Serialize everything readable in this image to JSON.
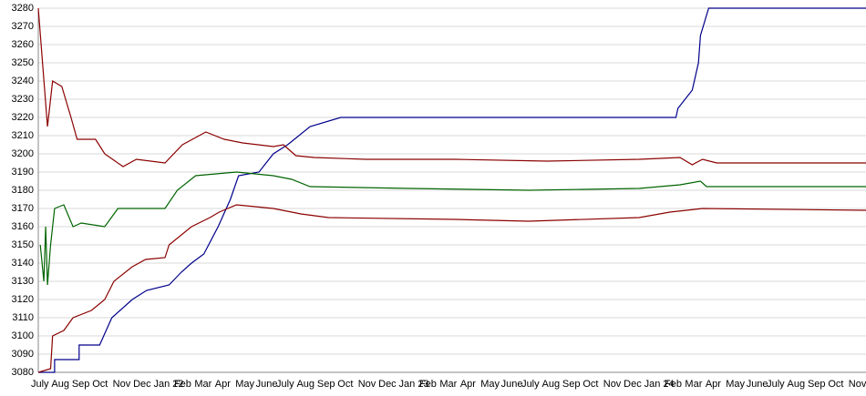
{
  "chart_data": {
    "type": "line",
    "categories": [
      "July",
      "Aug",
      "Sep",
      "Oct",
      "Nov",
      "Dec",
      "Jan 22",
      "Feb",
      "Mar",
      "Apr",
      "May",
      "June",
      "July",
      "Aug",
      "Sep",
      "Oct",
      "Nov",
      "Dec",
      "Jan 23",
      "Feb",
      "Mar",
      "Apr",
      "May",
      "June",
      "July",
      "Aug",
      "Sep",
      "Oct",
      "Nov",
      "Dec",
      "Jan 24",
      "Feb",
      "Mar",
      "Apr",
      "May",
      "June",
      "July",
      "Aug",
      "Sep",
      "Oct",
      "Nov"
    ],
    "xlim": [
      0,
      40.5
    ],
    "ylim": [
      3080,
      3280
    ],
    "yticks": [
      3080,
      3090,
      3100,
      3110,
      3120,
      3130,
      3140,
      3150,
      3160,
      3170,
      3180,
      3190,
      3200,
      3210,
      3220,
      3230,
      3240,
      3250,
      3260,
      3270,
      3280
    ],
    "grid": true,
    "series": [
      {
        "color": "#00008b",
        "x": [
          0,
          0.8,
          0.8,
          2,
          2,
          3,
          3.6,
          4.6,
          5.3,
          6.4,
          7,
          7.5,
          8.1,
          8.8,
          9.4,
          9.8,
          10.8,
          11.5,
          12.2,
          13.3,
          14.8,
          31.2,
          31.3,
          32,
          32.3,
          32.4,
          32.8,
          40.5
        ],
        "values": [
          3080,
          3080,
          3087,
          3087,
          3095,
          3095,
          3110,
          3120,
          3125,
          3128,
          3135,
          3140,
          3145,
          3160,
          3175,
          3188,
          3190,
          3200,
          3205,
          3215,
          3220,
          3220,
          3225,
          3235,
          3250,
          3265,
          3280,
          3280
        ]
      },
      {
        "color": "#8b0000",
        "x": [
          0,
          0.45,
          0.7,
          1.15,
          1.6,
          1.9,
          2.8,
          3.25,
          4.15,
          4.8,
          6.2,
          7.05,
          8.2,
          9.1,
          10,
          11.5,
          12,
          12.6,
          13.5,
          16,
          20.4,
          24.9,
          29.4,
          31.4,
          32,
          32.5,
          33.2,
          40.5
        ],
        "values": [
          3280,
          3215,
          3240,
          3237,
          3220,
          3208,
          3208,
          3200,
          3193,
          3197,
          3195,
          3205,
          3212,
          3208,
          3206,
          3204,
          3205,
          3199,
          3198,
          3197,
          3197,
          3196,
          3197,
          3198,
          3194,
          3197,
          3195,
          3195
        ]
      },
      {
        "color": "#006400",
        "x": [
          0.1,
          0.27,
          0.36,
          0.45,
          0.6,
          0.8,
          1.25,
          1.7,
          2.1,
          3.25,
          3.9,
          6.2,
          6.8,
          7.7,
          9.7,
          11.5,
          12.4,
          13.3,
          18.2,
          24,
          29.4,
          31.4,
          32.4,
          32.7,
          40.5
        ],
        "values": [
          3150,
          3130,
          3160,
          3128,
          3150,
          3170,
          3172,
          3160,
          3162,
          3160,
          3170,
          3170,
          3180,
          3188,
          3190,
          3188,
          3186,
          3182,
          3181,
          3180,
          3181,
          3183,
          3185,
          3182,
          3182
        ]
      },
      {
        "color": "#8b0000",
        "x": [
          0,
          0.6,
          0.7,
          1.25,
          1.7,
          2.6,
          3.25,
          3.7,
          4.6,
          5.25,
          6.2,
          6.4,
          7.5,
          8.4,
          8.85,
          9.7,
          11.5,
          12.85,
          14.2,
          20.4,
          24,
          29.4,
          30.9,
          32.5,
          40.5
        ],
        "values": [
          3080,
          3082,
          3100,
          3103,
          3110,
          3114,
          3120,
          3130,
          3138,
          3142,
          3143,
          3150,
          3160,
          3165,
          3168,
          3172,
          3170,
          3167,
          3165,
          3164,
          3163,
          3165,
          3168,
          3170,
          3169
        ]
      }
    ]
  }
}
